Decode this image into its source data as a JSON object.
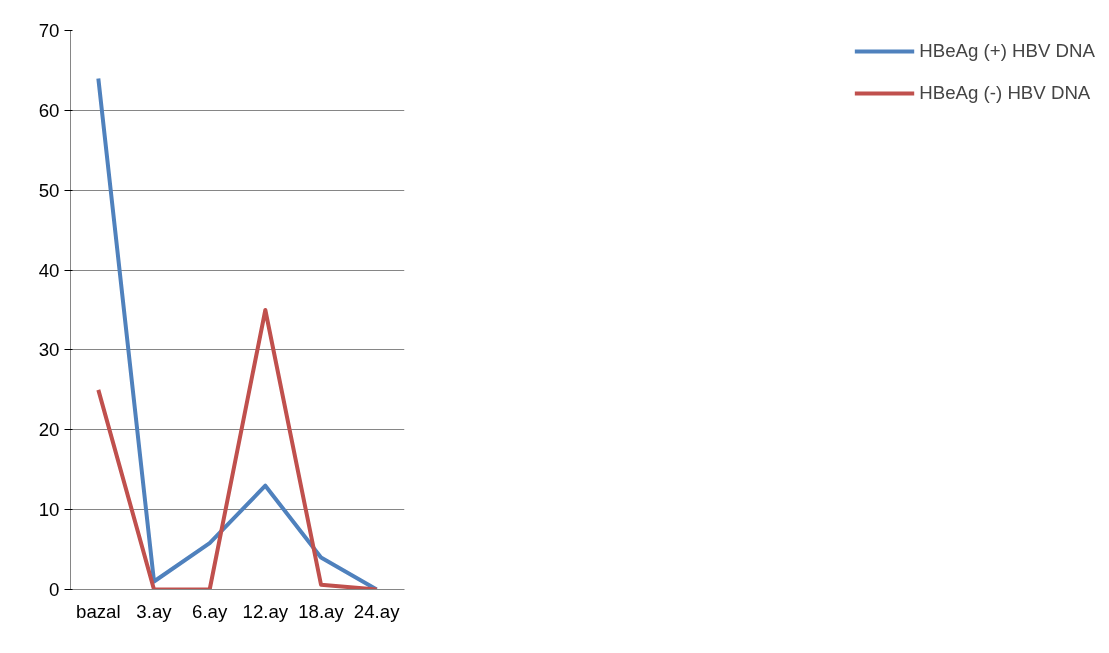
{
  "chart_data": {
    "type": "line",
    "categories": [
      "bazal",
      "3.ay",
      "6.ay",
      "12.ay",
      "18.ay",
      "24.ay"
    ],
    "series": [
      {
        "name": "HBeAg (+) HBV DNA",
        "color": "#4f81bd",
        "values": [
          64,
          1,
          5.8,
          13,
          4,
          0
        ]
      },
      {
        "name": "HBeAg (-) HBV DNA",
        "color": "#c0504d",
        "values": [
          25,
          0,
          0,
          35,
          0.6,
          0
        ]
      }
    ],
    "ylim": [
      0,
      70
    ],
    "yticks": [
      0,
      10,
      20,
      30,
      40,
      50,
      60,
      70
    ],
    "grid": "y",
    "legend": "right",
    "marker": "none",
    "line_style": "solid"
  }
}
